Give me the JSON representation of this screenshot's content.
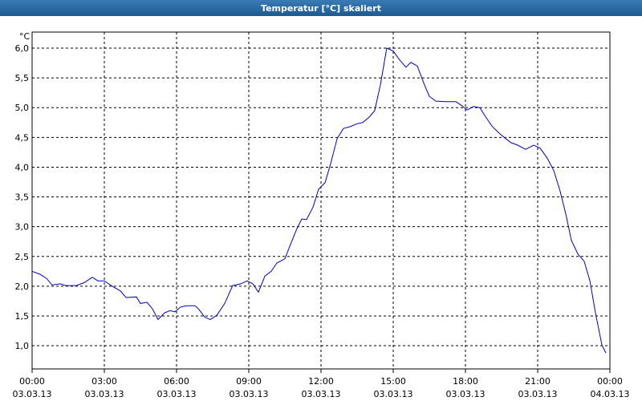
{
  "chart_data": {
    "type": "line",
    "title": "Temperatur [°C] skaliert",
    "y_label": "°C",
    "color": "#0000c8",
    "grid": true,
    "x": [
      0,
      0.33,
      0.6,
      0.83,
      1.17,
      1.4,
      1.83,
      2.17,
      2.5,
      2.73,
      3,
      3.33,
      3.67,
      3.9,
      4.33,
      4.5,
      4.77,
      5,
      5.23,
      5.5,
      5.73,
      5.93,
      6.17,
      6.4,
      6.77,
      6.93,
      7.17,
      7.4,
      7.67,
      8,
      8.33,
      8.67,
      8.93,
      9.17,
      9.4,
      9.67,
      9.93,
      10.17,
      10.5,
      10.73,
      11,
      11.2,
      11.4,
      11.67,
      11.9,
      12.17,
      12.4,
      12.67,
      12.93,
      13.2,
      13.5,
      13.73,
      14,
      14.23,
      14.47,
      14.73,
      15,
      15.27,
      15.53,
      15.73,
      16,
      16.27,
      16.5,
      16.77,
      17.17,
      17.6,
      17.83,
      18.07,
      18.33,
      18.6,
      18.83,
      19.1,
      19.4,
      19.67,
      19.9,
      20.17,
      20.5,
      20.83,
      21.1,
      21.4,
      21.67,
      21.93,
      22.17,
      22.4,
      22.67,
      22.93,
      23.17,
      23.4,
      23.67,
      23.83
    ],
    "values": [
      2.25,
      2.2,
      2.13,
      2.02,
      2.04,
      2.01,
      2.01,
      2.06,
      2.15,
      2.09,
      2.09,
      2.0,
      1.92,
      1.81,
      1.82,
      1.71,
      1.73,
      1.62,
      1.44,
      1.55,
      1.59,
      1.57,
      1.65,
      1.67,
      1.67,
      1.61,
      1.48,
      1.44,
      1.51,
      1.71,
      2.01,
      2.04,
      2.09,
      2.04,
      1.9,
      2.17,
      2.25,
      2.39,
      2.46,
      2.7,
      2.97,
      3.13,
      3.12,
      3.33,
      3.63,
      3.74,
      4.06,
      4.48,
      4.65,
      4.68,
      4.73,
      4.75,
      4.84,
      4.95,
      5.39,
      6.0,
      5.95,
      5.8,
      5.68,
      5.76,
      5.7,
      5.41,
      5.19,
      5.11,
      5.1,
      5.1,
      5.04,
      4.96,
      5.02,
      5.0,
      4.85,
      4.69,
      4.57,
      4.48,
      4.41,
      4.37,
      4.3,
      4.37,
      4.32,
      4.15,
      3.94,
      3.6,
      3.21,
      2.77,
      2.54,
      2.42,
      2.09,
      1.55,
      1.01,
      0.88
    ],
    "xlim": [
      0,
      24
    ],
    "xticks": [
      {
        "value": 0,
        "label": "00:00",
        "date": "03.03.13"
      },
      {
        "value": 3,
        "label": "03:00",
        "date": "03.03.13"
      },
      {
        "value": 6,
        "label": "06:00",
        "date": "03.03.13"
      },
      {
        "value": 9,
        "label": "09:00",
        "date": "03.03.13"
      },
      {
        "value": 12,
        "label": "12:00",
        "date": "03.03.13"
      },
      {
        "value": 15,
        "label": "15:00",
        "date": "03.03.13"
      },
      {
        "value": 18,
        "label": "18:00",
        "date": "03.03.13"
      },
      {
        "value": 21,
        "label": "21:00",
        "date": "03.03.13"
      },
      {
        "value": 24,
        "label": "00:00",
        "date": "04.03.13"
      }
    ],
    "ylim": [
      0.61,
      6.27
    ],
    "yticks": [
      {
        "value": 1,
        "label": "1,0"
      },
      {
        "value": 1.5,
        "label": "1,5"
      },
      {
        "value": 2,
        "label": "2,0"
      },
      {
        "value": 2.5,
        "label": "2,5"
      },
      {
        "value": 3,
        "label": "3,0"
      },
      {
        "value": 3.5,
        "label": "3,5"
      },
      {
        "value": 4,
        "label": "4,0"
      },
      {
        "value": 4.5,
        "label": "4,5"
      },
      {
        "value": 5,
        "label": "5,0"
      },
      {
        "value": 5.5,
        "label": "5,5"
      },
      {
        "value": 6,
        "label": "6,0"
      }
    ]
  }
}
